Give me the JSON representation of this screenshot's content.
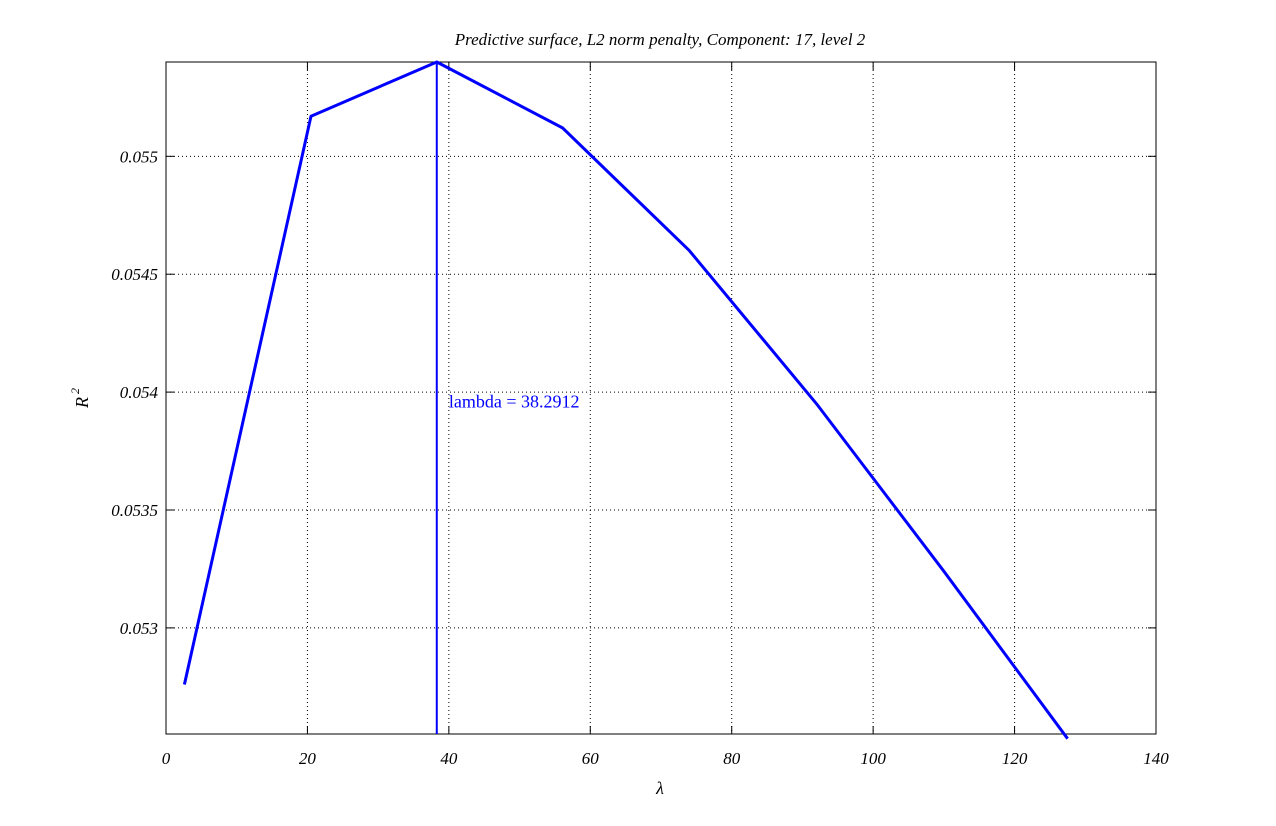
{
  "chart_data": {
    "type": "line",
    "title": "Predictive surface, L2 norm penalty, Component: 17, level 2",
    "xlabel": "λ",
    "ylabel": "R",
    "ylabel_superscript": "2",
    "xlim": [
      0,
      140
    ],
    "ylim": [
      0.05255,
      0.0554
    ],
    "x_ticks": [
      0,
      20,
      40,
      60,
      80,
      100,
      120,
      140
    ],
    "x_tick_labels": [
      "0",
      "20",
      "40",
      "60",
      "80",
      "100",
      "120",
      "140"
    ],
    "y_ticks": [
      0.053,
      0.0535,
      0.054,
      0.0545,
      0.055
    ],
    "y_tick_labels": [
      "0.053",
      "0.0535",
      "0.054",
      "0.0545",
      "0.055"
    ],
    "grid": true,
    "color": "#0000ff",
    "series": [
      {
        "x": [
          2.6,
          20.5,
          38.3,
          56.1,
          74.0,
          92.0,
          110.0,
          127.5
        ],
        "y": [
          0.05276,
          0.05517,
          0.0554,
          0.05512,
          0.0546,
          0.05395,
          0.05324,
          0.05253
        ]
      }
    ],
    "vline": {
      "x": 38.2912
    },
    "annotation": {
      "text": "lambda  =  38.2912",
      "x": 40.0,
      "y": 0.05396
    }
  }
}
